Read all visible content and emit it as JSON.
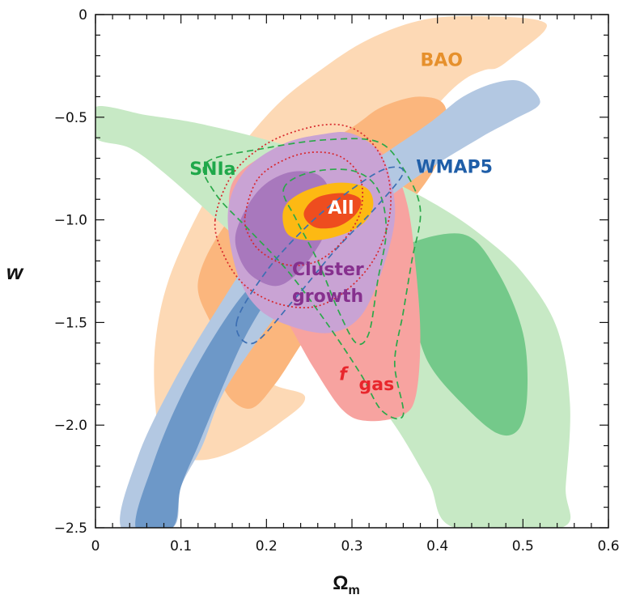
{
  "chart_data": {
    "type": "contour",
    "xlabel": "Ω",
    "xlabel_sub": "m",
    "ylabel": "w",
    "xlim": [
      0,
      0.6
    ],
    "ylim": [
      -2.5,
      0
    ],
    "x_ticks": [
      0,
      0.1,
      0.2,
      0.3,
      0.4,
      0.5,
      0.6
    ],
    "y_ticks": [
      0,
      -0.5,
      -1.0,
      -1.5,
      -2.0,
      -2.5
    ],
    "x_tick_labels": [
      "0",
      "0.1",
      "0.2",
      "0.3",
      "0.4",
      "0.5",
      "0.6"
    ],
    "y_tick_labels": [
      "0",
      "−0.5",
      "−1.0",
      "−1.5",
      "−2.0",
      "−2.5"
    ],
    "grid": false,
    "colors": {
      "bao_outer": "#fdd9b5",
      "bao_inner": "#fbb67d",
      "sn_outer": "#c7e9c5",
      "sn_inner": "#74c98a",
      "wmap_outer": "#b3c8e2",
      "wmap_inner": "#6d98c8",
      "cluster_outer": "#c9a3d4",
      "cluster_inner": "#a878bd",
      "fgas": "#f7a3a0",
      "all_outer": "#fdb913",
      "all_inner": "#ee4d1f"
    },
    "annotations": [
      {
        "text": "BAO",
        "color": "#e6902c",
        "x": 0.38,
        "y": -0.25
      },
      {
        "text": "SNIa",
        "color": "#1fa84a",
        "x": 0.11,
        "y": -0.78
      },
      {
        "text": "WMAP5",
        "color": "#1f5ea8",
        "x": 0.375,
        "y": -0.77
      },
      {
        "text": "All",
        "color": "#ffffff",
        "x": 0.272,
        "y": -0.97
      },
      {
        "text": "Cluster",
        "color": "#86308e",
        "x": 0.23,
        "y": -1.27
      },
      {
        "text": "growth",
        "color": "#86308e",
        "x": 0.23,
        "y": -1.4
      },
      {
        "text": "f",
        "color": "#e8262c",
        "x": 0.285,
        "y": -1.78
      },
      {
        "text": "gas",
        "color": "#e8262c",
        "x": 0.308,
        "y": -1.83
      }
    ],
    "regions": [
      {
        "id": "bao-outer",
        "fill": "bao_outer",
        "points": [
          [
            0.2,
            -1.75
          ],
          [
            0.25,
            -1.35
          ],
          [
            0.3,
            -1.02
          ],
          [
            0.35,
            -0.7
          ],
          [
            0.4,
            -0.44
          ],
          [
            0.43,
            -0.32
          ],
          [
            0.455,
            -0.27
          ],
          [
            0.47,
            -0.26
          ],
          [
            0.49,
            -0.2
          ],
          [
            0.525,
            -0.08
          ],
          [
            0.52,
            -0.03
          ],
          [
            0.47,
            -0.01
          ],
          [
            0.39,
            -0.02
          ],
          [
            0.32,
            -0.12
          ],
          [
            0.26,
            -0.28
          ],
          [
            0.21,
            -0.45
          ],
          [
            0.16,
            -0.7
          ],
          [
            0.12,
            -0.97
          ],
          [
            0.085,
            -1.3
          ],
          [
            0.07,
            -1.6
          ],
          [
            0.07,
            -1.9
          ],
          [
            0.08,
            -2.1
          ],
          [
            0.115,
            -2.17
          ],
          [
            0.16,
            -2.13
          ],
          [
            0.215,
            -1.99
          ],
          [
            0.245,
            -1.86
          ]
        ]
      },
      {
        "id": "bao-inner",
        "fill": "bao_inner",
        "points": [
          [
            0.14,
            -1.56
          ],
          [
            0.12,
            -1.3
          ],
          [
            0.16,
            -0.98
          ],
          [
            0.23,
            -0.73
          ],
          [
            0.3,
            -0.55
          ],
          [
            0.335,
            -0.45
          ],
          [
            0.38,
            -0.4
          ],
          [
            0.41,
            -0.46
          ],
          [
            0.4,
            -0.72
          ],
          [
            0.36,
            -0.96
          ],
          [
            0.33,
            -1.11
          ],
          [
            0.29,
            -1.33
          ],
          [
            0.245,
            -1.58
          ],
          [
            0.21,
            -1.8
          ],
          [
            0.18,
            -1.92
          ],
          [
            0.15,
            -1.82
          ]
        ]
      },
      {
        "id": "sn-outer",
        "fill": "sn_outer",
        "points": [
          [
            0,
            -0.45
          ],
          [
            0.06,
            -0.49
          ],
          [
            0.12,
            -0.53
          ],
          [
            0.2,
            -0.61
          ],
          [
            0.28,
            -0.71
          ],
          [
            0.34,
            -0.8
          ],
          [
            0.4,
            -0.93
          ],
          [
            0.45,
            -1.07
          ],
          [
            0.5,
            -1.26
          ],
          [
            0.54,
            -1.53
          ],
          [
            0.555,
            -1.9
          ],
          [
            0.55,
            -2.3
          ],
          [
            0.545,
            -2.5
          ],
          [
            0.42,
            -2.5
          ],
          [
            0.39,
            -2.28
          ],
          [
            0.35,
            -2.0
          ],
          [
            0.3,
            -1.73
          ],
          [
            0.25,
            -1.45
          ],
          [
            0.2,
            -1.23
          ],
          [
            0.15,
            -1.03
          ],
          [
            0.08,
            -0.77
          ],
          [
            0.04,
            -0.65
          ],
          [
            0,
            -0.6
          ]
        ]
      },
      {
        "id": "sn-inner",
        "fill": "sn_inner",
        "points": [
          [
            0.36,
            -1.13
          ],
          [
            0.43,
            -1.07
          ],
          [
            0.47,
            -1.25
          ],
          [
            0.5,
            -1.55
          ],
          [
            0.505,
            -1.85
          ],
          [
            0.495,
            -2.02
          ],
          [
            0.47,
            -2.04
          ],
          [
            0.43,
            -1.9
          ],
          [
            0.39,
            -1.7
          ],
          [
            0.37,
            -1.45
          ],
          [
            0.355,
            -1.25
          ]
        ]
      },
      {
        "id": "fgas",
        "fill": "fgas",
        "points": [
          [
            0.16,
            -0.82
          ],
          [
            0.2,
            -0.68
          ],
          [
            0.255,
            -0.6
          ],
          [
            0.31,
            -0.61
          ],
          [
            0.345,
            -0.72
          ],
          [
            0.365,
            -0.93
          ],
          [
            0.375,
            -1.25
          ],
          [
            0.38,
            -1.57
          ],
          [
            0.375,
            -1.85
          ],
          [
            0.36,
            -1.95
          ],
          [
            0.32,
            -1.98
          ],
          [
            0.29,
            -1.93
          ],
          [
            0.255,
            -1.72
          ],
          [
            0.22,
            -1.47
          ],
          [
            0.18,
            -1.26
          ],
          [
            0.16,
            -1.05
          ]
        ]
      },
      {
        "id": "wmap-outer",
        "fill": "wmap_outer",
        "points": [
          [
            0.03,
            -2.5
          ],
          [
            0.05,
            -2.15
          ],
          [
            0.09,
            -1.8
          ],
          [
            0.14,
            -1.45
          ],
          [
            0.19,
            -1.15
          ],
          [
            0.26,
            -0.9
          ],
          [
            0.33,
            -0.7
          ],
          [
            0.39,
            -0.53
          ],
          [
            0.43,
            -0.4
          ],
          [
            0.47,
            -0.33
          ],
          [
            0.5,
            -0.33
          ],
          [
            0.52,
            -0.43
          ],
          [
            0.49,
            -0.51
          ],
          [
            0.45,
            -0.6
          ],
          [
            0.38,
            -0.78
          ],
          [
            0.32,
            -0.97
          ],
          [
            0.26,
            -1.22
          ],
          [
            0.2,
            -1.53
          ],
          [
            0.15,
            -1.84
          ],
          [
            0.125,
            -2.1
          ],
          [
            0.1,
            -2.3
          ],
          [
            0.09,
            -2.5
          ]
        ]
      },
      {
        "id": "wmap-inner",
        "fill": "wmap_inner",
        "points": [
          [
            0.047,
            -2.5
          ],
          [
            0.068,
            -2.18
          ],
          [
            0.1,
            -1.86
          ],
          [
            0.14,
            -1.56
          ],
          [
            0.18,
            -1.33
          ],
          [
            0.225,
            -1.18
          ],
          [
            0.21,
            -1.32
          ],
          [
            0.175,
            -1.57
          ],
          [
            0.145,
            -1.85
          ],
          [
            0.12,
            -2.1
          ],
          [
            0.1,
            -2.3
          ],
          [
            0.09,
            -2.5
          ]
        ]
      },
      {
        "id": "cluster-outer",
        "fill": "cluster_outer",
        "points": [
          [
            0.155,
            -0.96
          ],
          [
            0.175,
            -0.76
          ],
          [
            0.22,
            -0.63
          ],
          [
            0.27,
            -0.58
          ],
          [
            0.3,
            -0.58
          ],
          [
            0.33,
            -0.66
          ],
          [
            0.345,
            -0.8
          ],
          [
            0.35,
            -1.0
          ],
          [
            0.335,
            -1.25
          ],
          [
            0.31,
            -1.47
          ],
          [
            0.275,
            -1.55
          ],
          [
            0.23,
            -1.52
          ],
          [
            0.19,
            -1.43
          ],
          [
            0.165,
            -1.25
          ]
        ]
      },
      {
        "id": "cluster-inner",
        "fill": "cluster_inner",
        "points": [
          [
            0.165,
            -1.05
          ],
          [
            0.19,
            -0.86
          ],
          [
            0.225,
            -0.77
          ],
          [
            0.26,
            -0.78
          ],
          [
            0.275,
            -0.88
          ],
          [
            0.27,
            -1.05
          ],
          [
            0.245,
            -1.22
          ],
          [
            0.215,
            -1.32
          ],
          [
            0.185,
            -1.28
          ],
          [
            0.168,
            -1.18
          ]
        ]
      },
      {
        "id": "all-outer",
        "fill": "all_outer",
        "points": [
          [
            0.22,
            -0.95
          ],
          [
            0.24,
            -0.87
          ],
          [
            0.28,
            -0.82
          ],
          [
            0.315,
            -0.84
          ],
          [
            0.325,
            -0.92
          ],
          [
            0.315,
            -1.01
          ],
          [
            0.29,
            -1.07
          ],
          [
            0.255,
            -1.1
          ],
          [
            0.225,
            -1.07
          ]
        ]
      },
      {
        "id": "all-inner",
        "fill": "all_inner",
        "points": [
          [
            0.245,
            -0.95
          ],
          [
            0.26,
            -0.89
          ],
          [
            0.29,
            -0.87
          ],
          [
            0.31,
            -0.9
          ],
          [
            0.305,
            -0.97
          ],
          [
            0.285,
            -1.03
          ],
          [
            0.26,
            -1.04
          ],
          [
            0.246,
            -1.0
          ]
        ]
      }
    ],
    "outlines": [
      {
        "id": "sn-dash-outer",
        "color": "#2ba84a",
        "style": "dashed",
        "points": [
          [
            0.13,
            -0.72
          ],
          [
            0.2,
            -0.65
          ],
          [
            0.27,
            -0.61
          ],
          [
            0.33,
            -0.62
          ],
          [
            0.36,
            -0.75
          ],
          [
            0.38,
            -0.95
          ],
          [
            0.37,
            -1.2
          ],
          [
            0.36,
            -1.45
          ],
          [
            0.35,
            -1.7
          ],
          [
            0.36,
            -1.95
          ],
          [
            0.335,
            -1.93
          ],
          [
            0.31,
            -1.75
          ],
          [
            0.27,
            -1.5
          ],
          [
            0.225,
            -1.25
          ],
          [
            0.18,
            -1.05
          ],
          [
            0.14,
            -0.87
          ]
        ]
      },
      {
        "id": "sn-dash-inner",
        "color": "#2ba84a",
        "style": "dashed",
        "points": [
          [
            0.22,
            -0.85
          ],
          [
            0.25,
            -0.77
          ],
          [
            0.3,
            -0.76
          ],
          [
            0.33,
            -0.85
          ],
          [
            0.34,
            -1.05
          ],
          [
            0.33,
            -1.3
          ],
          [
            0.32,
            -1.55
          ],
          [
            0.305,
            -1.6
          ],
          [
            0.285,
            -1.45
          ],
          [
            0.26,
            -1.2
          ],
          [
            0.235,
            -1.0
          ]
        ]
      },
      {
        "id": "wmap-dash",
        "color": "#3d6fb3",
        "style": "dashed",
        "points": [
          [
            0.165,
            -1.5
          ],
          [
            0.2,
            -1.25
          ],
          [
            0.25,
            -1.02
          ],
          [
            0.3,
            -0.85
          ],
          [
            0.34,
            -0.75
          ],
          [
            0.36,
            -0.77
          ],
          [
            0.33,
            -0.93
          ],
          [
            0.28,
            -1.15
          ],
          [
            0.23,
            -1.4
          ],
          [
            0.185,
            -1.6
          ]
        ]
      },
      {
        "id": "fgas-dot-outer",
        "color": "#d7262b",
        "style": "dotted",
        "points": [
          [
            0.14,
            -1.0
          ],
          [
            0.16,
            -0.78
          ],
          [
            0.2,
            -0.63
          ],
          [
            0.25,
            -0.55
          ],
          [
            0.29,
            -0.54
          ],
          [
            0.32,
            -0.61
          ],
          [
            0.34,
            -0.75
          ],
          [
            0.345,
            -0.95
          ],
          [
            0.33,
            -1.16
          ],
          [
            0.3,
            -1.32
          ],
          [
            0.26,
            -1.42
          ],
          [
            0.215,
            -1.41
          ],
          [
            0.175,
            -1.32
          ],
          [
            0.15,
            -1.17
          ]
        ]
      },
      {
        "id": "fgas-dot-inner",
        "color": "#d7262b",
        "style": "dotted",
        "points": [
          [
            0.175,
            -0.98
          ],
          [
            0.19,
            -0.8
          ],
          [
            0.225,
            -0.7
          ],
          [
            0.26,
            -0.67
          ],
          [
            0.29,
            -0.7
          ],
          [
            0.31,
            -0.8
          ],
          [
            0.31,
            -0.96
          ],
          [
            0.29,
            -1.1
          ],
          [
            0.26,
            -1.2
          ],
          [
            0.225,
            -1.22
          ],
          [
            0.195,
            -1.16
          ],
          [
            0.18,
            -1.08
          ]
        ]
      }
    ]
  }
}
